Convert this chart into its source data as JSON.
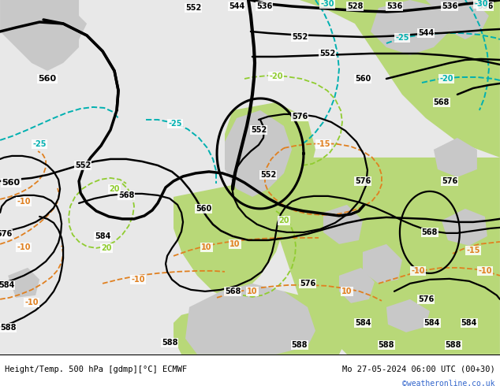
{
  "title_left": "Height/Temp. 500 hPa [gdmp][°C] ECMWF",
  "title_right": "Mo 27-05-2024 06:00 UTC (00+30)",
  "credit": "©weatheronline.co.uk",
  "fig_width": 6.34,
  "fig_height": 4.9,
  "dpi": 100,
  "bg_green": "#b8d878",
  "bg_gray": "#c8c8c8",
  "bg_white": "#e8e8e8",
  "black": "#000000",
  "orange": "#e08020",
  "cyan": "#00b0b0",
  "lime": "#90cc30"
}
